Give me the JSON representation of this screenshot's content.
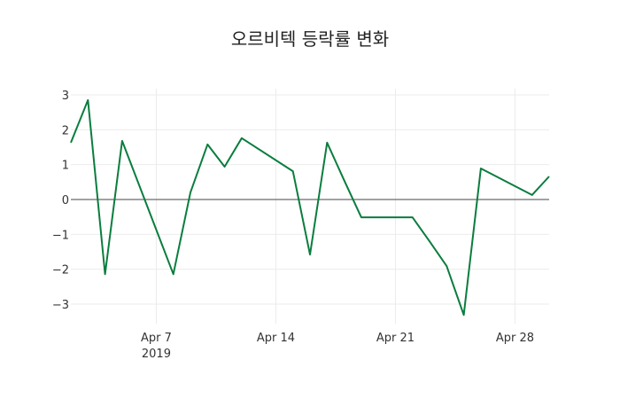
{
  "chart_data": {
    "type": "line",
    "title": "오르비텍 등락률 변화",
    "xlabel": "",
    "ylabel": "",
    "x": [
      "2019-04-02",
      "2019-04-03",
      "2019-04-04",
      "2019-04-05",
      "2019-04-08",
      "2019-04-09",
      "2019-04-10",
      "2019-04-11",
      "2019-04-12",
      "2019-04-15",
      "2019-04-16",
      "2019-04-17",
      "2019-04-18",
      "2019-04-19",
      "2019-04-22",
      "2019-04-23",
      "2019-04-24",
      "2019-04-25",
      "2019-04-26",
      "2019-04-29",
      "2019-04-30"
    ],
    "series": [
      {
        "name": "등락률",
        "color": "#0a7d3e",
        "values": [
          1.63,
          2.85,
          -2.14,
          1.68,
          -2.14,
          0.2,
          1.58,
          0.94,
          1.76,
          0.81,
          -1.58,
          1.63,
          0.55,
          -0.51,
          -0.51,
          -1.2,
          -1.91,
          -3.31,
          0.89,
          0.13,
          0.66
        ]
      }
    ],
    "x_ticks": [
      {
        "date": "2019-04-07",
        "label": "Apr 7",
        "sublabel": "2019"
      },
      {
        "date": "2019-04-14",
        "label": "Apr 14",
        "sublabel": ""
      },
      {
        "date": "2019-04-21",
        "label": "Apr 21",
        "sublabel": ""
      },
      {
        "date": "2019-04-28",
        "label": "Apr 28",
        "sublabel": ""
      }
    ],
    "y_ticks": [
      3,
      2,
      1,
      0,
      -1,
      -2,
      -3
    ],
    "y_tick_labels": [
      "3",
      "2",
      "1",
      "0",
      "−1",
      "−2",
      "−3"
    ],
    "ylim": [
      -3.6,
      3.2
    ],
    "xlim": [
      "2019-04-02",
      "2019-04-30"
    ],
    "grid": true,
    "zero_line": true,
    "legend": "none"
  }
}
